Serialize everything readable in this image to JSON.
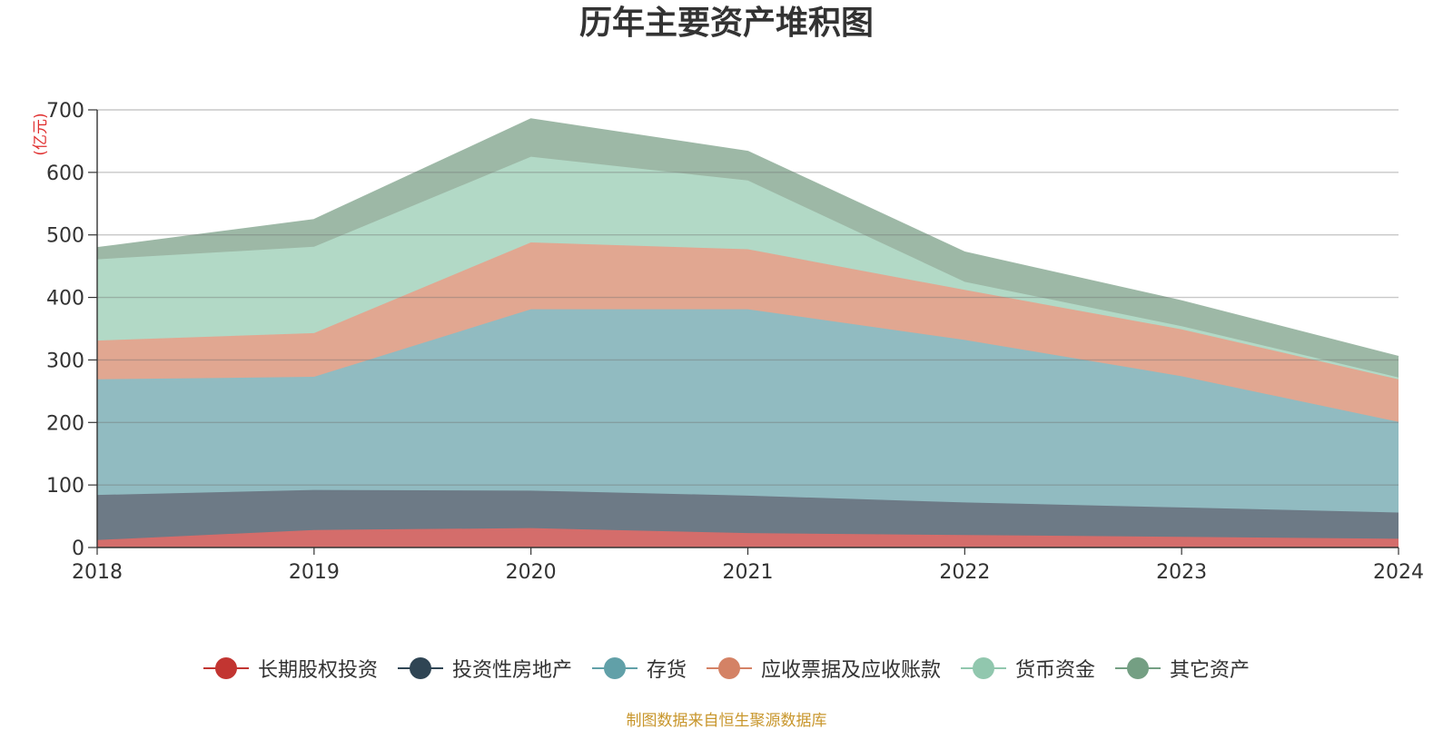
{
  "chart_data": {
    "type": "area",
    "stacked": true,
    "title": "历年主要资产堆积图",
    "unit": "(亿元)",
    "x": [
      "2018",
      "2019",
      "2020",
      "2021",
      "2022",
      "2023",
      "2024"
    ],
    "ylim": [
      0,
      700
    ],
    "yticks": [
      0,
      100,
      200,
      300,
      400,
      500,
      600,
      700
    ],
    "grid": true,
    "legend_position": "bottom",
    "series": [
      {
        "name": "长期股权投资",
        "color": "#c23531",
        "fill": "#d46d6b",
        "values": [
          12,
          28,
          31,
          23,
          20,
          17,
          14
        ]
      },
      {
        "name": "投资性房地产",
        "color": "#2f4554",
        "fill": "#6d7a86",
        "values": [
          72,
          64,
          60,
          60,
          52,
          47,
          42
        ]
      },
      {
        "name": "存货",
        "color": "#61a0a8",
        "fill": "#91bbc1",
        "values": [
          185,
          181,
          290,
          298,
          260,
          210,
          145
        ]
      },
      {
        "name": "应收票据及应收账款",
        "color": "#d48265",
        "fill": "#e1a791",
        "values": [
          62,
          70,
          107,
          96,
          80,
          75,
          68
        ]
      },
      {
        "name": "货币资金",
        "color": "#91c7ae",
        "fill": "#b2d9c6",
        "values": [
          130,
          138,
          137,
          110,
          13,
          5,
          3
        ]
      },
      {
        "name": "其它资产",
        "color": "#749f83",
        "fill": "#9db8a6",
        "values": [
          18,
          43,
          60,
          46,
          47,
          40,
          33
        ]
      }
    ]
  },
  "source_note": "制图数据来自恒生聚源数据库"
}
